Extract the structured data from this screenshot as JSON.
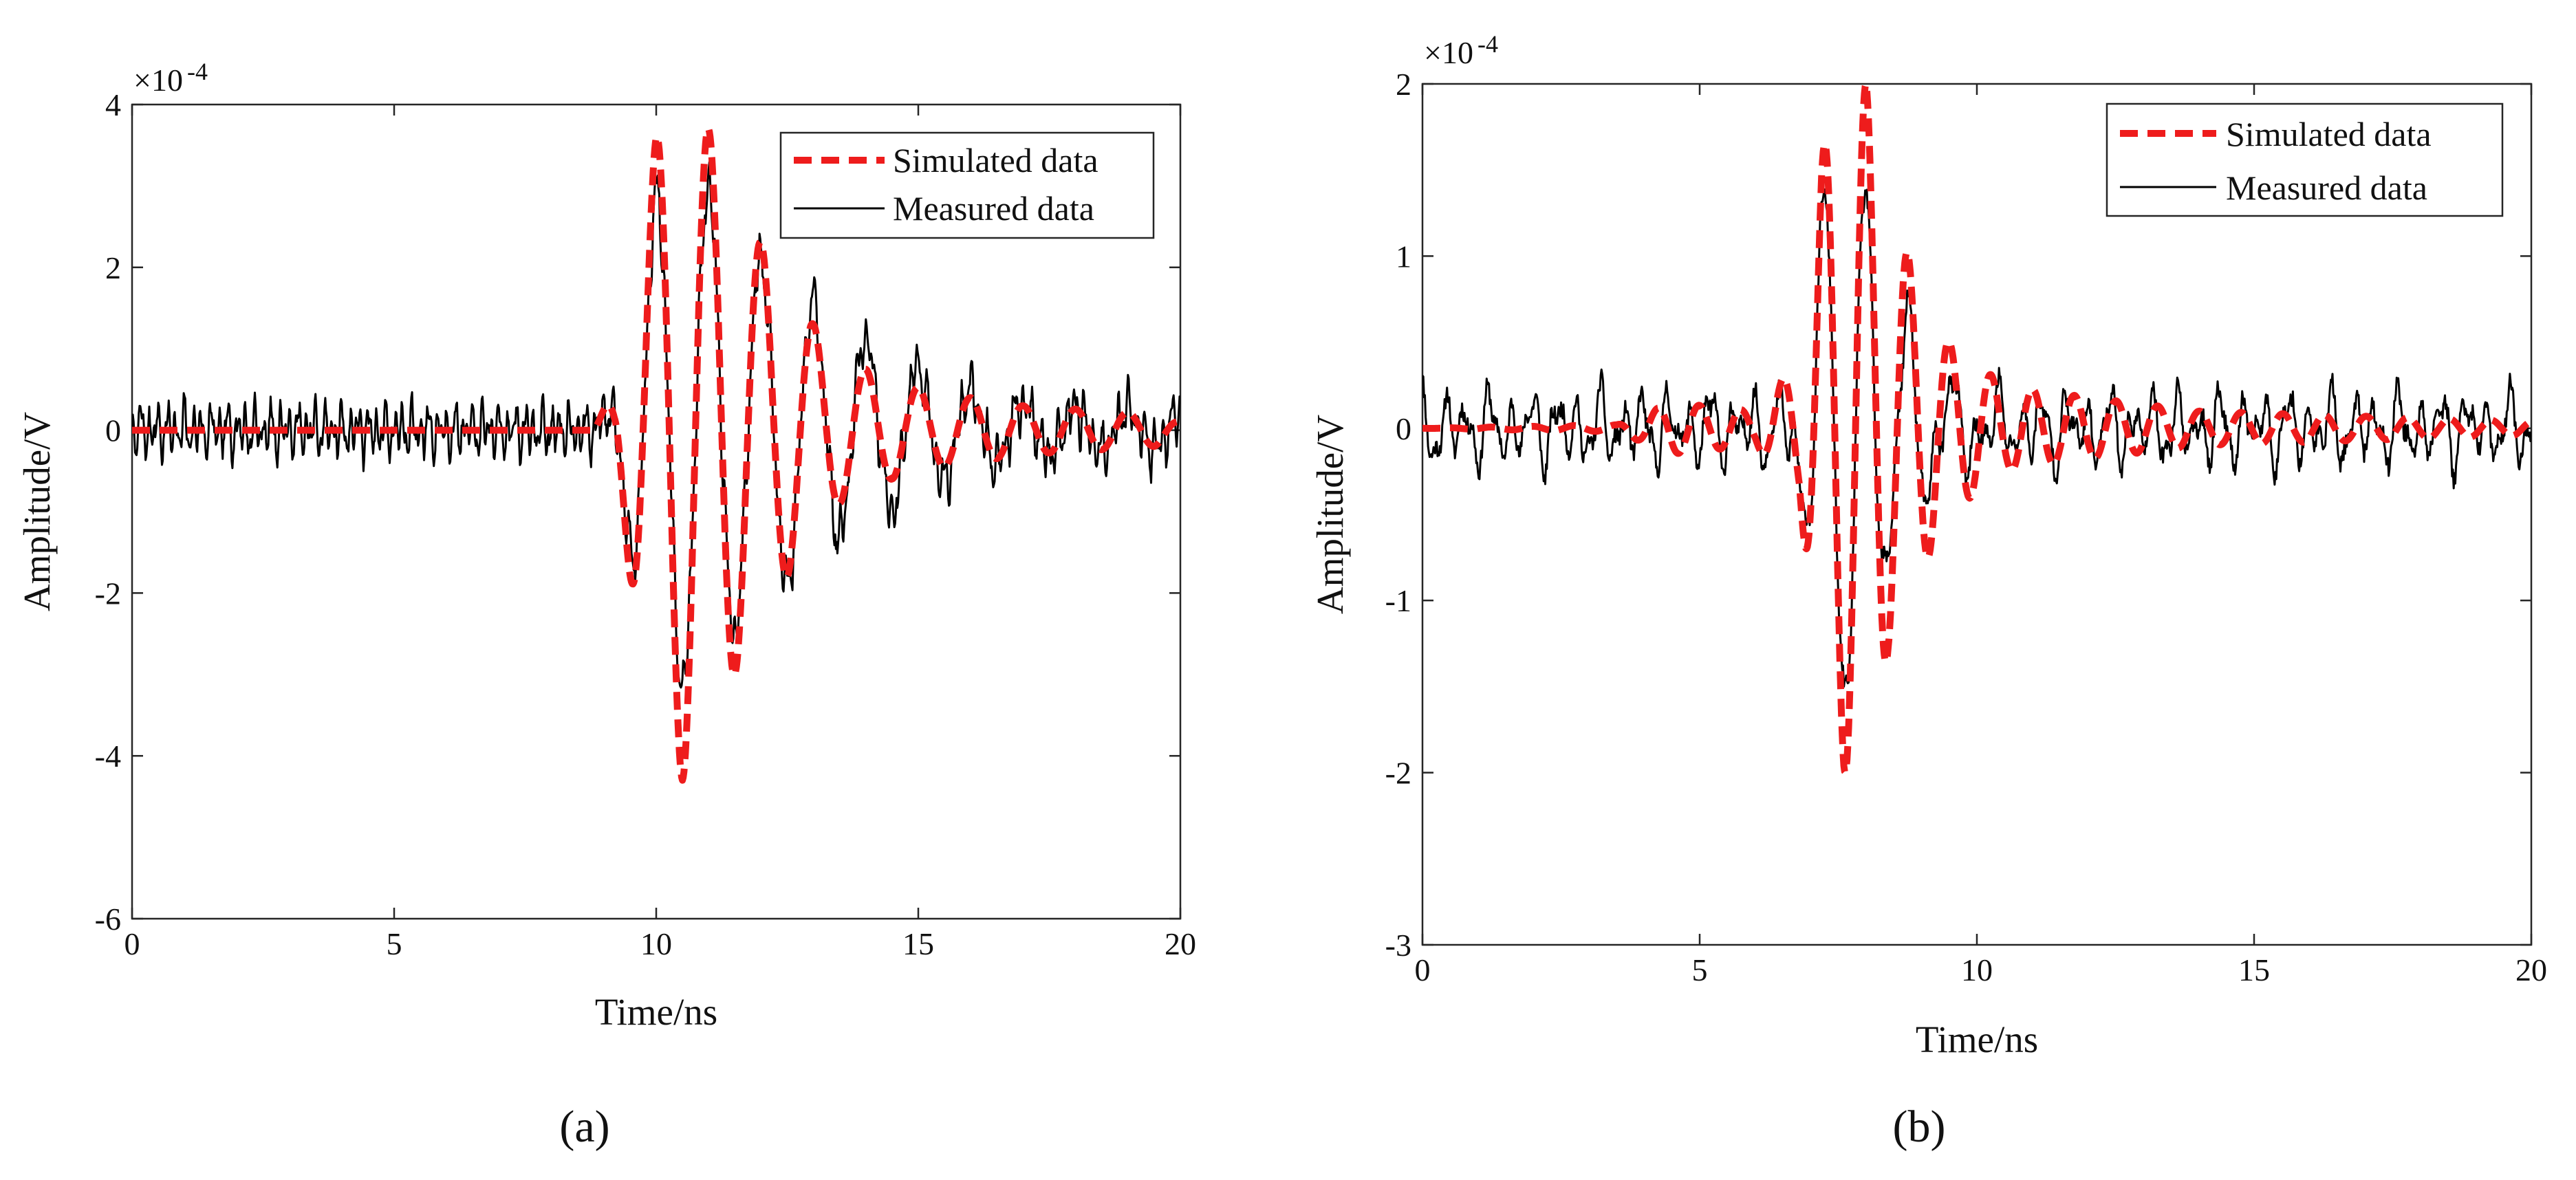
{
  "figure": {
    "panels": [
      "(a)",
      "(b)"
    ]
  },
  "chart_data": [
    {
      "type": "line",
      "panel_label": "(a)",
      "title": "",
      "xlabel": "Time/ns",
      "ylabel": "Amplitude/V",
      "y_exponent_label": "×10",
      "y_exponent_power": "-4",
      "xlim": [
        0,
        20
      ],
      "ylim": [
        -6,
        4
      ],
      "xticks": [
        0,
        5,
        10,
        15,
        20
      ],
      "yticks": [
        -6,
        -4,
        -2,
        0,
        2,
        4
      ],
      "grid": false,
      "legend_position": "top-right",
      "series": [
        {
          "name": "Simulated data",
          "color": "#ee1c1c",
          "style": "dashed",
          "kind": "synthetic_pulse",
          "params": {
            "envelope": [
              [
                0,
                0
              ],
              [
                8.8,
                0
              ],
              [
                9.2,
                0.5
              ],
              [
                9.6,
                2.2
              ],
              [
                10.0,
                3.6
              ],
              [
                10.5,
                4.3
              ],
              [
                11.0,
                3.7
              ],
              [
                11.5,
                3.0
              ],
              [
                12.0,
                2.3
              ],
              [
                12.5,
                1.8
              ],
              [
                13.0,
                1.3
              ],
              [
                13.5,
                0.9
              ],
              [
                14.5,
                0.6
              ],
              [
                15.5,
                0.45
              ],
              [
                17.0,
                0.3
              ],
              [
                19.5,
                0.2
              ],
              [
                20,
                0.1
              ]
            ],
            "freq": 1.0,
            "peak_time": 11.0,
            "phase_deg": 90,
            "noise_amp": 0,
            "noise_freq": 0,
            "seed": 1
          }
        },
        {
          "name": "Measured data",
          "color": "#000000",
          "style": "solid",
          "kind": "synthetic_pulse",
          "params": {
            "envelope": [
              [
                0,
                0
              ],
              [
                8.8,
                0
              ],
              [
                9.2,
                0.4
              ],
              [
                9.6,
                1.8
              ],
              [
                10.0,
                2.9
              ],
              [
                10.5,
                3.2
              ],
              [
                11.0,
                3.0
              ],
              [
                11.5,
                2.5
              ],
              [
                12.0,
                2.1
              ],
              [
                12.5,
                1.9
              ],
              [
                13.0,
                1.6
              ],
              [
                13.5,
                1.3
              ],
              [
                14.5,
                1.0
              ],
              [
                15.5,
                0.6
              ],
              [
                17.0,
                0.3
              ],
              [
                20,
                0.2
              ]
            ],
            "freq": 1.0,
            "peak_time": 11.0,
            "phase_deg": 90,
            "noise_amp": 0.45,
            "noise_freq": 6,
            "seed": 7
          }
        }
      ]
    },
    {
      "type": "line",
      "panel_label": "(b)",
      "title": "",
      "xlabel": "Time/ns",
      "ylabel": "Amplitude/V",
      "y_exponent_label": "×10",
      "y_exponent_power": "-4",
      "xlim": [
        0,
        20
      ],
      "ylim": [
        -3,
        2
      ],
      "xticks": [
        0,
        5,
        10,
        15,
        20
      ],
      "yticks": [
        -3,
        -2,
        -1,
        0,
        1,
        2
      ],
      "grid": false,
      "legend_position": "top-right",
      "series": [
        {
          "name": "Simulated data",
          "color": "#ee1c1c",
          "style": "dashed",
          "kind": "synthetic_pulse",
          "params": {
            "envelope": [
              [
                0,
                0
              ],
              [
                3.5,
                0.02
              ],
              [
                4.5,
                0.15
              ],
              [
                6.0,
                0.1
              ],
              [
                6.8,
                0.4
              ],
              [
                7.2,
                1.6
              ],
              [
                7.6,
                2.0
              ],
              [
                8.0,
                2.0
              ],
              [
                8.4,
                1.3
              ],
              [
                8.9,
                0.9
              ],
              [
                9.5,
                0.5
              ],
              [
                10.5,
                0.25
              ],
              [
                12.0,
                0.18
              ],
              [
                14.0,
                0.1
              ],
              [
                17.0,
                0.07
              ],
              [
                20,
                0.04
              ]
            ],
            "freq": 1.33,
            "peak_time": 8.0,
            "phase_deg": 90,
            "noise_amp": 0,
            "noise_freq": 0,
            "seed": 3
          }
        },
        {
          "name": "Measured data",
          "color": "#000000",
          "style": "solid",
          "kind": "synthetic_pulse",
          "params": {
            "envelope": [
              [
                0,
                0
              ],
              [
                6.6,
                0
              ],
              [
                7.0,
                0.7
              ],
              [
                7.3,
                1.4
              ],
              [
                7.7,
                1.75
              ],
              [
                8.0,
                1.3
              ],
              [
                8.4,
                0.9
              ],
              [
                8.9,
                0.6
              ],
              [
                9.4,
                0.3
              ],
              [
                10.5,
                0
              ],
              [
                20,
                0
              ]
            ],
            "freq": 1.33,
            "peak_time": 8.0,
            "phase_deg": 90,
            "noise_amp": 0.3,
            "noise_freq": 2.5,
            "seed": 11
          }
        }
      ]
    }
  ]
}
